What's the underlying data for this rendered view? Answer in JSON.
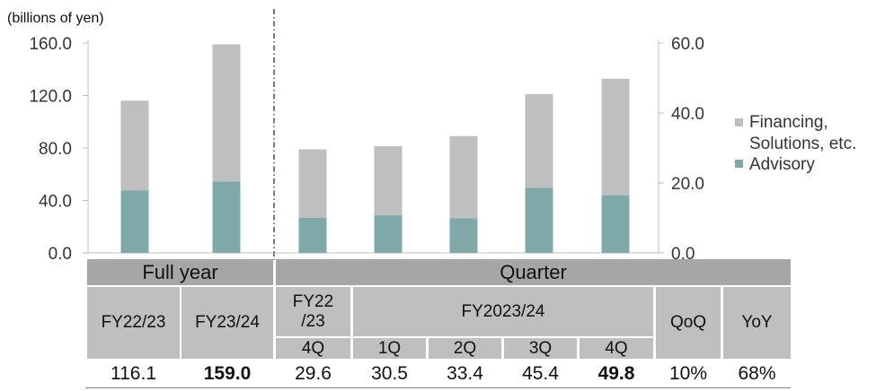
{
  "chart_data": {
    "type": "bar",
    "stacked": true,
    "unit_label": "(billions of yen)",
    "colors": {
      "advisory": "#7fa8a8",
      "financing": "#bfbfbf"
    },
    "full_year": {
      "categories": [
        "FY22/23",
        "FY23/24"
      ],
      "y_axis": {
        "side": "left",
        "ticks": [
          "160.0",
          "120.0",
          "80.0",
          "40.0",
          "0.0"
        ],
        "ylim": [
          0,
          160
        ]
      },
      "series": [
        {
          "name": "Advisory",
          "values": [
            47.5,
            54.5
          ]
        },
        {
          "name": "Financing, Solutions, etc.",
          "values": [
            68.6,
            104.5
          ]
        }
      ],
      "totals": [
        "116.1",
        "159.0"
      ]
    },
    "quarter": {
      "categories": [
        "FY22/23 4Q",
        "FY2023/24 1Q",
        "FY2023/24 2Q",
        "FY2023/24 3Q",
        "FY2023/24 4Q"
      ],
      "y_axis": {
        "side": "right",
        "ticks": [
          "60.0",
          "40.0",
          "20.0",
          "0.0"
        ],
        "ylim": [
          0,
          60
        ]
      },
      "series": [
        {
          "name": "Advisory",
          "values": [
            10.0,
            10.8,
            9.9,
            18.6,
            16.5
          ]
        },
        {
          "name": "Financing, Solutions, etc.",
          "values": [
            19.6,
            19.7,
            23.5,
            26.8,
            33.3
          ]
        }
      ],
      "totals": [
        "29.6",
        "30.5",
        "33.4",
        "45.4",
        "49.8"
      ]
    },
    "legend": {
      "placement": "right",
      "items": [
        {
          "label_line1": "Financing,",
          "label_line2": "Solutions, etc.",
          "series": "Financing, Solutions, etc."
        },
        {
          "label_line1": "Advisory",
          "label_line2": "",
          "series": "Advisory"
        }
      ]
    }
  },
  "table": {
    "full_year_header": "Full year",
    "quarter_header": "Quarter",
    "fy2223": "FY22/23",
    "fy2324": "FY23/24",
    "fy22_line1": "FY22",
    "fy22_line2": "/23",
    "fy2023_24": "FY2023/24",
    "qoq": "QoQ",
    "yoy": "YoY",
    "q4_prev": "4Q",
    "q1": "1Q",
    "q2": "2Q",
    "q3": "3Q",
    "q4": "4Q",
    "values": {
      "fy2223": "116.1",
      "fy2324": "159.0",
      "q4_prev": "29.6",
      "q1": "30.5",
      "q2": "33.4",
      "q3": "45.4",
      "q4": "49.8",
      "qoq": "10%",
      "yoy": "68%"
    }
  }
}
